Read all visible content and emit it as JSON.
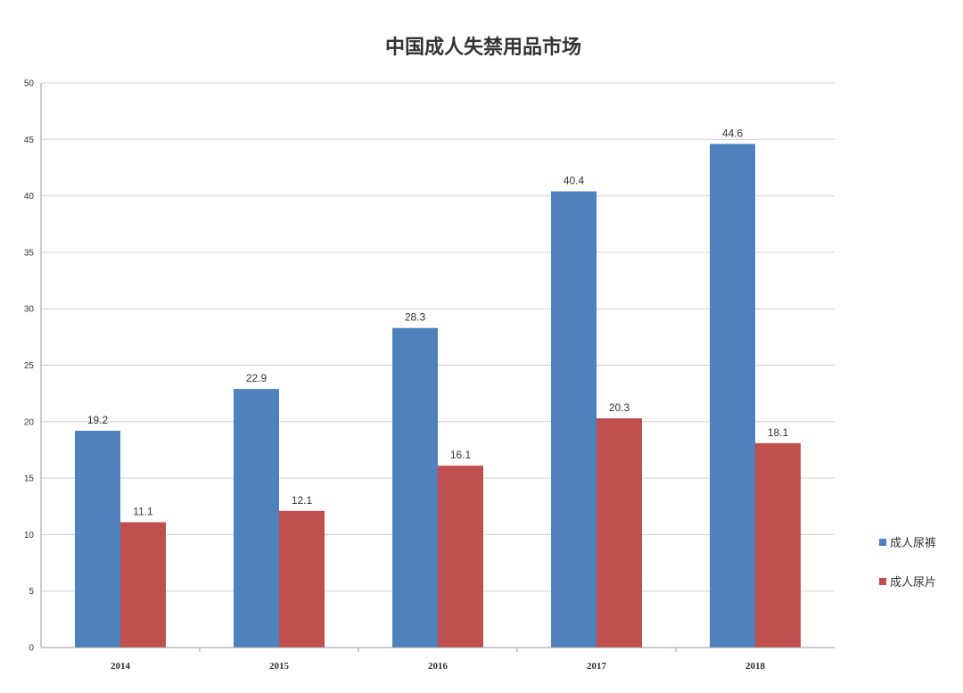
{
  "chart_data": {
    "type": "bar",
    "title": "中国成人失禁用品市场",
    "categories": [
      "2014",
      "2015",
      "2016",
      "2017",
      "2018"
    ],
    "series": [
      {
        "name": "成人尿裤",
        "color": "#4f81bd",
        "values": [
          19.2,
          22.9,
          28.3,
          40.4,
          44.6
        ]
      },
      {
        "name": "成人尿片",
        "color": "#c0504d",
        "values": [
          11.1,
          12.1,
          16.1,
          20.3,
          18.1
        ]
      }
    ],
    "xlabel": "",
    "ylabel": "",
    "ylim": [
      0,
      50
    ],
    "yticks": [
      "0",
      "5",
      "10",
      "15",
      "20",
      "25",
      "30",
      "35",
      "40",
      "45",
      "50"
    ],
    "grid": true,
    "legend_position": "right"
  }
}
